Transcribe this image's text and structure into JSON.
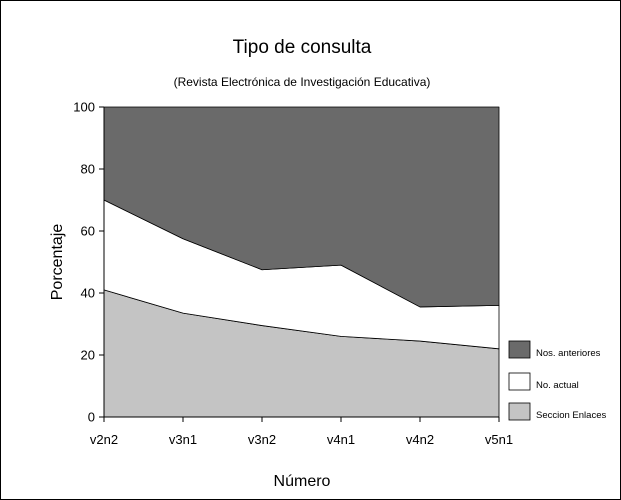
{
  "chart_data": {
    "type": "area",
    "stacked": true,
    "title": "Tipo de consulta",
    "subtitle": "(Revista Electrónica de Investigación Educativa)",
    "xlabel": "Número",
    "ylabel": "Porcentaje",
    "categories": [
      "v2n2",
      "v3n1",
      "v3n2",
      "v4n1",
      "v4n2",
      "v5n1"
    ],
    "ylim": [
      0,
      100
    ],
    "yticks": [
      "0",
      "20",
      "40",
      "60",
      "80",
      "100"
    ],
    "grid": false,
    "legend_position": "right",
    "series": [
      {
        "name": "Sección Enlaces",
        "values": [
          41,
          33.5,
          29.5,
          26,
          24.5,
          22
        ],
        "color": "#c4c4c4"
      },
      {
        "name": "No. actual",
        "values": [
          29,
          24,
          18,
          23,
          11,
          14
        ],
        "color": "#ffffff"
      },
      {
        "name": "Nos. anteriores",
        "values": [
          30,
          42.5,
          52.5,
          51,
          64.5,
          64
        ],
        "color": "#6a6a6a"
      }
    ],
    "legend": [
      {
        "label": "Nos. anteriores",
        "color": "#6a6a6a"
      },
      {
        "label": "No. actual",
        "color": "#ffffff"
      },
      {
        "label": "Seccion Enlaces",
        "color": "#c4c4c4"
      }
    ]
  }
}
